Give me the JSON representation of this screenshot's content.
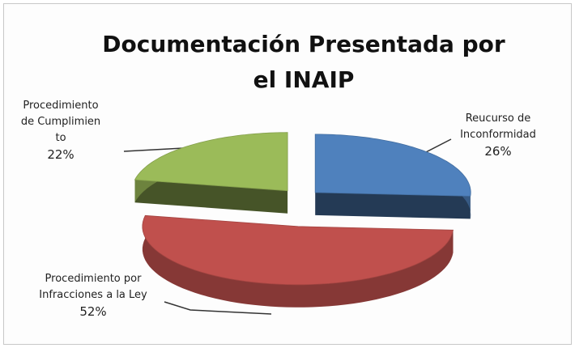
{
  "chart_data": {
    "type": "pie3d",
    "title": "Documentación Presentada por el INAIP",
    "categories": [
      "Reucurso de Inconformidad",
      "Procedimiento por Infracciones a la Ley",
      "Procedimiento de Cumplimiento"
    ],
    "values": [
      26,
      52,
      22
    ],
    "value_labels": [
      "26%",
      "52%",
      "22%"
    ],
    "colors": [
      "#4f81bd",
      "#c0504d",
      "#9bbb59"
    ]
  }
}
